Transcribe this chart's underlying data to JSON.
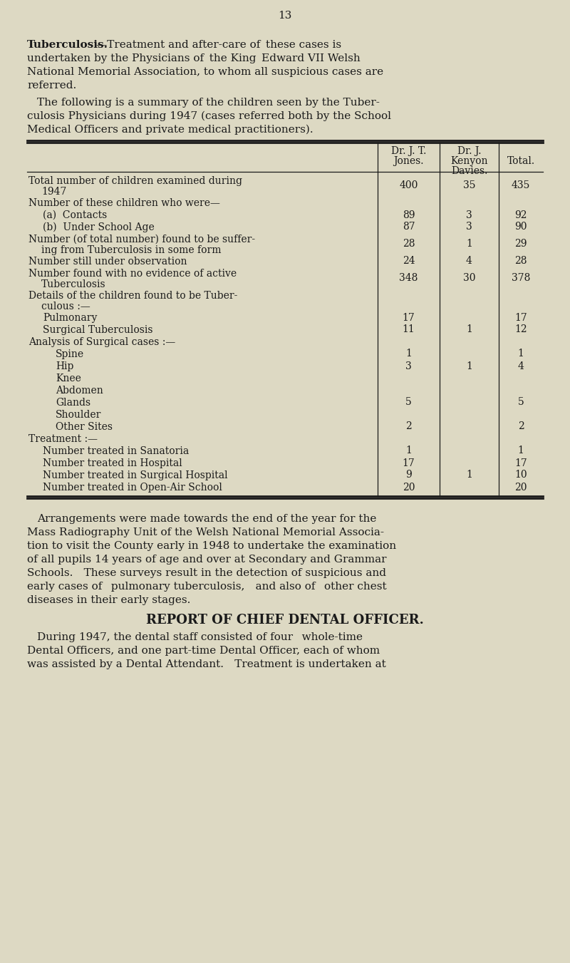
{
  "bg_color": "#ddd9c3",
  "text_color": "#1a1a1a",
  "page_number": "13",
  "table_rows": [
    {
      "label": "Total number of children examined during\n    1947",
      "indent": 0,
      "vals": [
        "400",
        "35",
        "435"
      ]
    },
    {
      "label": "Number of these children who were—",
      "indent": 0,
      "vals": [
        "",
        "",
        ""
      ]
    },
    {
      "label": "(a)  Contacts",
      "indent": 1,
      "vals": [
        "89",
        "3",
        "92"
      ]
    },
    {
      "label": "(b)  Under School Age",
      "indent": 1,
      "vals": [
        "87",
        "3",
        "90"
      ]
    },
    {
      "label": "Number (of total number) found to be suffer-\n    ing from Tuberculosis in some form",
      "indent": 0,
      "vals": [
        "28",
        "1",
        "29"
      ]
    },
    {
      "label": "Number still under observation",
      "indent": 0,
      "vals": [
        "24",
        "4",
        "28"
      ]
    },
    {
      "label": "Number found with no evidence of active\n    Tuberculosis",
      "indent": 0,
      "vals": [
        "348",
        "30",
        "378"
      ]
    },
    {
      "label": "Details of the children found to be Tuber-\n    culous :—",
      "indent": 0,
      "vals": [
        "",
        "",
        ""
      ]
    },
    {
      "label": "Pulmonary",
      "indent": 1,
      "vals": [
        "17",
        "",
        "17"
      ]
    },
    {
      "label": "Surgical Tuberculosis",
      "indent": 1,
      "vals": [
        "11",
        "1",
        "12"
      ]
    },
    {
      "label": "Analysis of Surgical cases :—",
      "indent": 0,
      "vals": [
        "",
        "",
        ""
      ]
    },
    {
      "label": "Spine",
      "indent": 2,
      "vals": [
        "1",
        "",
        "1"
      ]
    },
    {
      "label": "Hip",
      "indent": 2,
      "vals": [
        "3",
        "1",
        "4"
      ]
    },
    {
      "label": "Knee",
      "indent": 2,
      "vals": [
        "",
        "",
        ""
      ]
    },
    {
      "label": "Abdomen",
      "indent": 2,
      "vals": [
        "",
        "",
        ""
      ]
    },
    {
      "label": "Glands",
      "indent": 2,
      "vals": [
        "5",
        "",
        "5"
      ]
    },
    {
      "label": "Shoulder",
      "indent": 2,
      "vals": [
        "",
        "",
        ""
      ]
    },
    {
      "label": "Other Sites",
      "indent": 2,
      "vals": [
        "2",
        "",
        "2"
      ]
    },
    {
      "label": "Treatment :—",
      "indent": 0,
      "vals": [
        "",
        "",
        ""
      ]
    },
    {
      "label": "Number treated in Sanatoria",
      "indent": 1,
      "vals": [
        "1",
        "",
        "1"
      ]
    },
    {
      "label": "Number treated in Hospital",
      "indent": 1,
      "vals": [
        "17",
        "",
        "17"
      ]
    },
    {
      "label": "Number treated in Surgical Hospital",
      "indent": 1,
      "vals": [
        "9",
        "1",
        "10"
      ]
    },
    {
      "label": "Number treated in Open-Air School",
      "indent": 1,
      "vals": [
        "20",
        "",
        "20"
      ]
    }
  ]
}
